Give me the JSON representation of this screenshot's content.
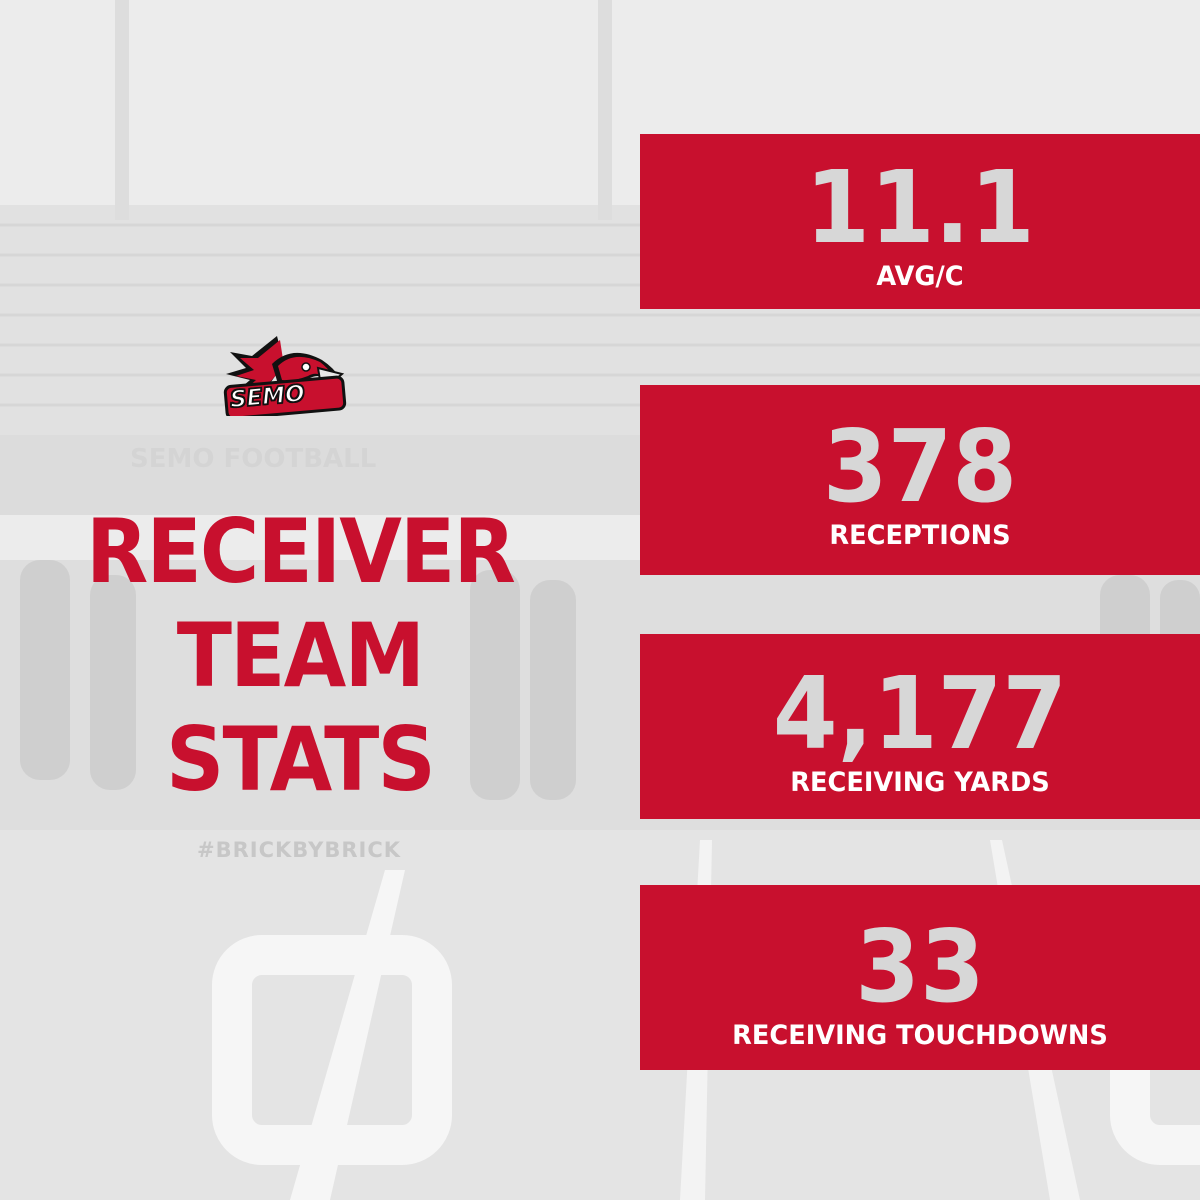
{
  "brand": {
    "logo_text": "SEMO",
    "watermark_text": "SEMO FOOTBALL",
    "hashtag": "#BRICKBYBRICK",
    "primary_color": "#c8102e",
    "text_light_color": "#d7d7d7"
  },
  "title": {
    "line1": "RECEIVER",
    "line2": "TEAM",
    "line3": "STATS"
  },
  "stats": [
    {
      "value": "11.1",
      "label": "AVG/C"
    },
    {
      "value": "378",
      "label": "RECEPTIONS"
    },
    {
      "value": "4,177",
      "label": "RECEIVING YARDS"
    },
    {
      "value": "33",
      "label": "RECEIVING TOUCHDOWNS"
    }
  ]
}
